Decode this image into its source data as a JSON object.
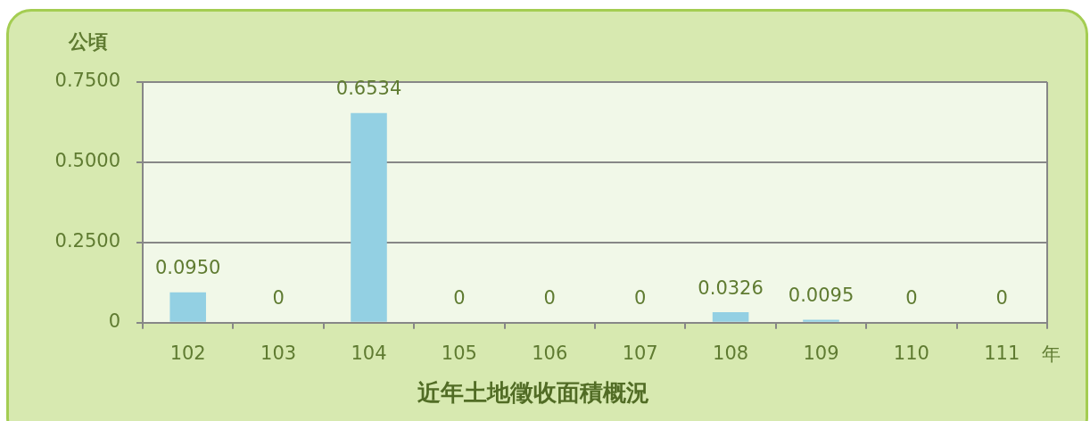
{
  "chart_data": {
    "type": "bar",
    "title": "近年土地徵收面積概況",
    "xlabel": "年",
    "ylabel": "公頃",
    "categories": [
      "102",
      "103",
      "104",
      "105",
      "106",
      "107",
      "108",
      "109",
      "110",
      "111"
    ],
    "values": [
      0.095,
      0,
      0.6534,
      0,
      0,
      0,
      0.0326,
      0.0095,
      0,
      0
    ],
    "value_labels": [
      "0.0950",
      "0",
      "0.6534",
      "0",
      "0",
      "0",
      "0.0326",
      "0.0095",
      "0",
      "0"
    ],
    "color": "#93d0e3",
    "ylim": [
      0,
      0.75
    ],
    "yticks": [
      0,
      {
        "value": 0.25,
        "label": "0.2500"
      },
      {
        "value": 0.5,
        "label": "0.5000"
      },
      {
        "value": 0.75,
        "label": "0.7500"
      }
    ],
    "grid": "y"
  }
}
